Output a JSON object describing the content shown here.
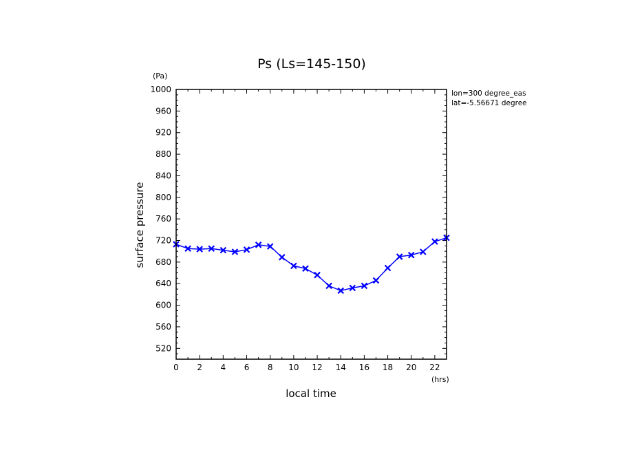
{
  "chart_data": {
    "type": "line",
    "title": "Ps (Ls=145-150)",
    "xlabel": "local time",
    "ylabel": "surface pressure",
    "x_unit": "(hrs)",
    "y_unit": "(Pa)",
    "annotations": [
      "lon=300 degree_eas",
      "lat=-5.56671 degree"
    ],
    "xlim": [
      0,
      23
    ],
    "ylim": [
      500,
      1000
    ],
    "x_ticks": [
      0,
      2,
      4,
      6,
      8,
      10,
      12,
      14,
      16,
      18,
      20,
      22
    ],
    "y_ticks": [
      520,
      560,
      600,
      640,
      680,
      720,
      760,
      800,
      840,
      880,
      920,
      960,
      1000
    ],
    "grid": false,
    "color": "#0000ff",
    "series": [
      {
        "x": [
          0,
          1,
          2,
          3,
          4,
          5,
          6,
          7,
          8,
          9,
          10,
          11,
          12,
          13,
          14,
          15,
          16,
          17,
          18,
          19,
          20,
          21,
          22,
          23
        ],
        "y": [
          713,
          705,
          704,
          705,
          702,
          699,
          703,
          712,
          709,
          689,
          673,
          668,
          656,
          636,
          627,
          632,
          636,
          646,
          669,
          690,
          693,
          699,
          718,
          725
        ]
      }
    ]
  }
}
